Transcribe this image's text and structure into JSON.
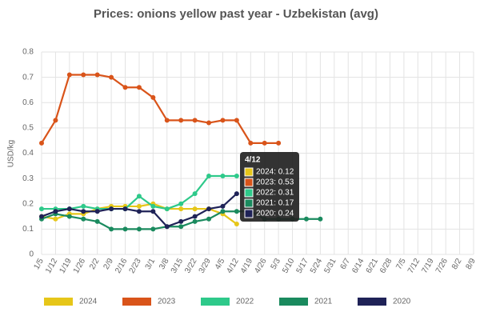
{
  "chart_data": {
    "type": "line",
    "title": "Prices: onions yellow past year - Uzbekistan (avg)",
    "y_label": "USD/kg",
    "categories": [
      "1/5",
      "1/12",
      "1/19",
      "1/26",
      "2/2",
      "2/9",
      "2/16",
      "2/23",
      "3/1",
      "3/8",
      "3/15",
      "3/22",
      "3/29",
      "4/5",
      "4/12",
      "4/19",
      "4/26",
      "5/3",
      "5/10",
      "5/17",
      "5/24",
      "5/31",
      "6/7",
      "6/14",
      "6/21",
      "6/28",
      "7/5",
      "7/12",
      "7/19",
      "7/26",
      "8/2",
      "8/9"
    ],
    "series": [
      {
        "name": "2024",
        "color": "#e6c619",
        "values": [
          0.15,
          0.14,
          0.16,
          0.16,
          0.18,
          0.19,
          0.19,
          0.19,
          0.2,
          0.18,
          0.18,
          0.18,
          0.18,
          0.16,
          0.12,
          null,
          null,
          null,
          null,
          null,
          null,
          null,
          null,
          null,
          null,
          null,
          null,
          null,
          null,
          null,
          null,
          null
        ]
      },
      {
        "name": "2023",
        "color": "#d9541a",
        "values": [
          0.44,
          0.53,
          0.71,
          0.71,
          0.71,
          0.7,
          0.66,
          0.66,
          0.62,
          0.53,
          0.53,
          0.53,
          0.52,
          0.53,
          0.53,
          0.44,
          0.44,
          0.44,
          null,
          null,
          null,
          null,
          null,
          null,
          null,
          null,
          null,
          null,
          null,
          null,
          null,
          null
        ]
      },
      {
        "name": "2022",
        "color": "#2ec98a",
        "values": [
          0.18,
          0.18,
          0.18,
          0.19,
          0.18,
          0.18,
          0.18,
          0.23,
          0.19,
          0.18,
          0.2,
          0.24,
          0.31,
          0.31,
          0.31,
          null,
          null,
          null,
          null,
          null,
          null,
          null,
          null,
          null,
          null,
          null,
          null,
          null,
          null,
          null,
          null,
          null
        ]
      },
      {
        "name": "2021",
        "color": "#1a8a5e",
        "values": [
          0.14,
          0.16,
          0.15,
          0.14,
          0.13,
          0.1,
          0.1,
          0.1,
          0.1,
          0.11,
          0.11,
          0.13,
          0.14,
          0.17,
          0.17,
          0.17,
          0.14,
          0.14,
          0.14,
          0.14,
          0.14,
          null,
          null,
          null,
          null,
          null,
          null,
          null,
          null,
          null,
          null,
          null
        ]
      },
      {
        "name": "2020",
        "color": "#1f2257",
        "values": [
          0.15,
          0.17,
          0.18,
          0.17,
          0.17,
          0.18,
          0.18,
          0.17,
          0.17,
          0.11,
          0.13,
          0.15,
          0.18,
          0.19,
          0.24,
          null,
          null,
          null,
          null,
          null,
          null,
          null,
          null,
          null,
          null,
          null,
          null,
          null,
          null,
          null,
          null,
          null
        ]
      }
    ],
    "ylim": [
      0,
      0.8
    ],
    "yticks": [
      0,
      0.1,
      0.2,
      0.3,
      0.4,
      0.5,
      0.6,
      0.7,
      0.8
    ],
    "grid": true,
    "legend": "bottom",
    "tooltip": {
      "title": "4/12",
      "lines": [
        "2024: 0.12",
        "2023: 0.53",
        "2022: 0.31",
        "2021: 0.17",
        "2020: 0.24"
      ]
    }
  }
}
